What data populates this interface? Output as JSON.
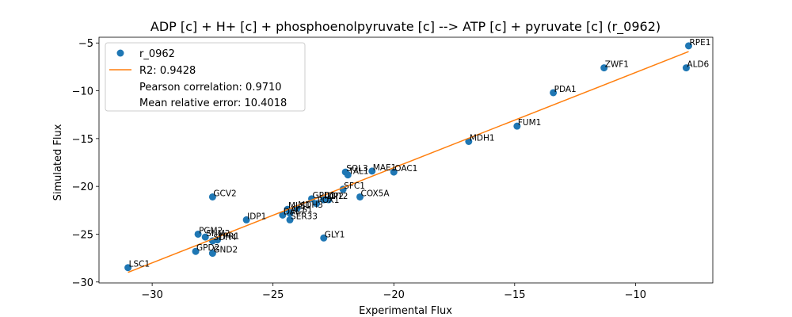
{
  "chart_data": {
    "type": "scatter",
    "title": "ADP [c] + H+ [c] + phosphoenolpyruvate [c] --> ATP [c] + pyruvate [c] (r_0962)",
    "xlabel": "Experimental Flux",
    "ylabel": "Simulated Flux",
    "xlim": [
      -32.2,
      -6.8
    ],
    "ylim": [
      -30.1,
      -4.4
    ],
    "xticks": [
      -30,
      -25,
      -20,
      -15,
      -10
    ],
    "yticks": [
      -30,
      -25,
      -20,
      -15,
      -10,
      -5
    ],
    "xtick_labels": [
      "−30",
      "−25",
      "−20",
      "−15",
      "−10"
    ],
    "ytick_labels": [
      "−30",
      "−25",
      "−20",
      "−15",
      "−10",
      "−5"
    ],
    "grid": false,
    "legend_position": "top-left",
    "colors": {
      "points": "#1f77b4",
      "fit_line": "#ff7f0e"
    },
    "series": [
      {
        "name": "r_0962",
        "kind": "points",
        "points": [
          {
            "label": "RPE1",
            "x": -7.8,
            "y": -5.3
          },
          {
            "label": "ZWF1",
            "x": -11.3,
            "y": -7.6
          },
          {
            "label": "ALD6",
            "x": -7.9,
            "y": -7.6
          },
          {
            "label": "PDA1",
            "x": -13.4,
            "y": -10.2
          },
          {
            "label": "FUM1",
            "x": -14.9,
            "y": -13.7
          },
          {
            "label": "MDH1",
            "x": -16.9,
            "y": -15.3
          },
          {
            "label": "SOL3",
            "x": -22.0,
            "y": -18.5
          },
          {
            "label": "TAL1",
            "x": -21.9,
            "y": -18.8
          },
          {
            "label": "MAE1",
            "x": -20.9,
            "y": -18.4
          },
          {
            "label": "OAC1",
            "x": -20.0,
            "y": -18.5
          },
          {
            "label": "SFC1",
            "x": -22.1,
            "y": -20.3
          },
          {
            "label": "COX5A",
            "x": -21.4,
            "y": -21.1
          },
          {
            "label": "GPD1",
            "x": -23.4,
            "y": -21.3
          },
          {
            "label": "CIT2",
            "x": -22.7,
            "y": -21.4
          },
          {
            "label": "IDP2",
            "x": -22.9,
            "y": -21.4
          },
          {
            "label": "POX1",
            "x": -23.2,
            "y": -21.8
          },
          {
            "label": "MDH3",
            "x": -24.0,
            "y": -22.3
          },
          {
            "label": "MLS1",
            "x": -24.4,
            "y": -22.4
          },
          {
            "label": "DAL7",
            "x": -24.6,
            "y": -23.0
          },
          {
            "label": "ACS1",
            "x": -24.3,
            "y": -22.8
          },
          {
            "label": "SER33",
            "x": -24.3,
            "y": -23.5
          },
          {
            "label": "IDP1",
            "x": -26.1,
            "y": -23.5
          },
          {
            "label": "GCV2",
            "x": -27.5,
            "y": -21.1
          },
          {
            "label": "PGM2",
            "x": -28.1,
            "y": -25.0
          },
          {
            "label": "SHM2",
            "x": -27.8,
            "y": -25.3
          },
          {
            "label": "YPR1",
            "x": -27.3,
            "y": -25.6
          },
          {
            "label": "GLY1",
            "x": -22.9,
            "y": -25.4
          },
          {
            "label": "SDH4",
            "x": -27.5,
            "y": -25.7
          },
          {
            "label": "GPD2",
            "x": -28.2,
            "y": -26.8
          },
          {
            "label": "GND2",
            "x": -27.5,
            "y": -27.0
          },
          {
            "label": "LSC1",
            "x": -31.0,
            "y": -28.5
          }
        ]
      },
      {
        "name": "R2: 0.9428",
        "kind": "line",
        "x": [
          -31.0,
          -7.8
        ],
        "y": [
          -29.0,
          -5.9
        ]
      }
    ],
    "legend": {
      "entries": [
        "r_0962",
        "R2: 0.9428",
        "Pearson correlation: 0.9710",
        "Mean relative error: 10.4018"
      ]
    }
  }
}
